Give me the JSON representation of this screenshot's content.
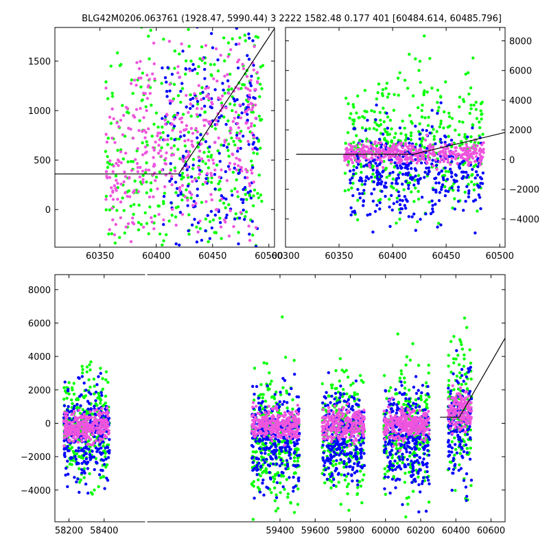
{
  "title": "BLG42M0206.063761 (1928.47, 5990.44)   3 2222 1582.48 0.177 401 [60484.614, 60485.796]",
  "colors": {
    "green": "#00ff00",
    "blue": "#0000ff",
    "pink": "#ee55dd",
    "line": "#000000"
  },
  "chart_data": [
    {
      "type": "scatter",
      "panel": "top-left zoom",
      "xlim": [
        60310,
        60505
      ],
      "ylim": [
        -380,
        1840
      ],
      "xticks": [
        60350,
        60400,
        60450,
        60500
      ],
      "yticks": [
        0,
        500,
        1000,
        1500
      ],
      "ytick_side": "left",
      "model_line": {
        "x": [
          60310,
          60420,
          60505
        ],
        "y": [
          360,
          360,
          1830
        ]
      },
      "series": [
        {
          "color": "green",
          "clusters": [
            {
              "x": [
                60355,
                60495
              ],
              "y_center": 500,
              "y_spread": 700
            }
          ]
        },
        {
          "color": "blue",
          "clusters": [
            {
              "x": [
                60405,
                60490
              ],
              "y_center": 500,
              "y_spread": 800
            }
          ]
        },
        {
          "color": "pink",
          "clusters": [
            {
              "x": [
                60355,
                60490
              ],
              "y_center": 550,
              "y_spread": 500
            }
          ]
        }
      ]
    },
    {
      "type": "scatter",
      "panel": "top-right",
      "xlim": [
        60300,
        60505
      ],
      "ylim": [
        -5900,
        8900
      ],
      "xticks": [
        60300,
        60350,
        60400,
        60450,
        60500
      ],
      "yticks": [
        -4000,
        -2000,
        0,
        2000,
        4000,
        6000,
        8000
      ],
      "ytick_side": "right",
      "model_line": {
        "x": [
          60310,
          60420,
          60505
        ],
        "y": [
          360,
          360,
          1830
        ]
      },
      "series": [
        {
          "color": "green",
          "clusters": [
            {
              "x": [
                60355,
                60485
              ],
              "y_center": 800,
              "y_spread": 2400
            }
          ]
        },
        {
          "color": "blue",
          "clusters": [
            {
              "x": [
                60360,
                60485
              ],
              "y_center": -700,
              "y_spread": 1600
            }
          ]
        },
        {
          "color": "pink",
          "clusters": [
            {
              "x": [
                60355,
                60485
              ],
              "y_center": 400,
              "y_spread": 350
            }
          ]
        }
      ]
    },
    {
      "type": "scatter",
      "panel": "bottom full light curve",
      "xlim": [
        58120,
        60680
      ],
      "ylim": [
        -5900,
        8900
      ],
      "xticks": [
        58200,
        58400,
        59400,
        59600,
        59800,
        60000,
        60200,
        60400,
        60600
      ],
      "yticks": [
        -4000,
        -2000,
        0,
        2000,
        4000,
        6000,
        8000
      ],
      "ytick_side": "left",
      "axis_break_x": 213,
      "model_line": {
        "x": [
          60310,
          60420,
          60680
        ],
        "y": [
          360,
          360,
          5100
        ]
      },
      "series": [
        {
          "color": "green",
          "clusters": [
            {
              "x": [
                58170,
                58430
              ],
              "y_center": -300,
              "y_spread": 1600
            },
            {
              "x": [
                59240,
                59510
              ],
              "y_center": -1200,
              "y_spread": 2000
            },
            {
              "x": [
                59640,
                59880
              ],
              "y_center": -600,
              "y_spread": 1800
            },
            {
              "x": [
                59990,
                60250
              ],
              "y_center": -600,
              "y_spread": 1800
            },
            {
              "x": [
                60355,
                60490
              ],
              "y_center": 600,
              "y_spread": 2200
            }
          ]
        },
        {
          "color": "blue",
          "clusters": [
            {
              "x": [
                58170,
                58430
              ],
              "y_center": -600,
              "y_spread": 1300
            },
            {
              "x": [
                59240,
                59510
              ],
              "y_center": -900,
              "y_spread": 1400
            },
            {
              "x": [
                59640,
                59880
              ],
              "y_center": -900,
              "y_spread": 1400
            },
            {
              "x": [
                59990,
                60250
              ],
              "y_center": -900,
              "y_spread": 1500
            },
            {
              "x": [
                60355,
                60490
              ],
              "y_center": -400,
              "y_spread": 1700
            }
          ]
        },
        {
          "color": "pink",
          "clusters": [
            {
              "x": [
                58170,
                58430
              ],
              "y_center": -200,
              "y_spread": 450
            },
            {
              "x": [
                59240,
                59510
              ],
              "y_center": -100,
              "y_spread": 450
            },
            {
              "x": [
                59640,
                59880
              ],
              "y_center": -100,
              "y_spread": 450
            },
            {
              "x": [
                59990,
                60250
              ],
              "y_center": -100,
              "y_spread": 450
            },
            {
              "x": [
                60355,
                60490
              ],
              "y_center": 700,
              "y_spread": 600
            }
          ]
        }
      ]
    }
  ]
}
